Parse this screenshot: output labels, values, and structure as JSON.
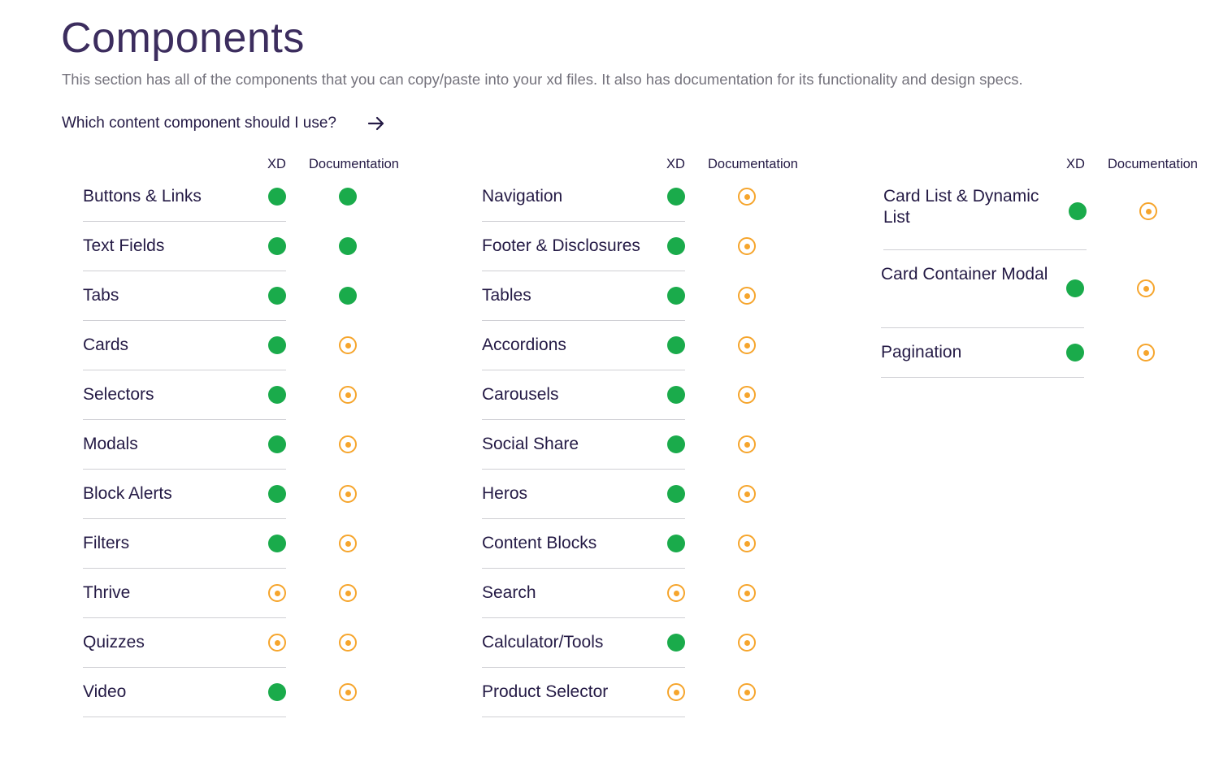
{
  "header": {
    "title": "Components",
    "subtitle": "This section has all of the components that you can copy/paste into your xd files. It also has documentation for its functionality and design specs.",
    "question": "Which content component should I use?",
    "question_icon": "arrow-right-icon"
  },
  "column_headers": {
    "xd": "XD",
    "documentation": "Documentation"
  },
  "status_legend": {
    "available": {
      "icon": "filled-circle-icon",
      "color": "#1aab4b"
    },
    "in_progress": {
      "icon": "target-circle-icon",
      "color": "#f6a52c"
    }
  },
  "columns": [
    {
      "rows": [
        {
          "label": "Buttons & Links",
          "xd": "available",
          "documentation": "available"
        },
        {
          "label": "Text Fields",
          "xd": "available",
          "documentation": "available"
        },
        {
          "label": "Tabs",
          "xd": "available",
          "documentation": "available"
        },
        {
          "label": "Cards",
          "xd": "available",
          "documentation": "in_progress"
        },
        {
          "label": "Selectors",
          "xd": "available",
          "documentation": "in_progress"
        },
        {
          "label": "Modals",
          "xd": "available",
          "documentation": "in_progress"
        },
        {
          "label": "Block Alerts",
          "xd": "available",
          "documentation": "in_progress"
        },
        {
          "label": "Filters",
          "xd": "available",
          "documentation": "in_progress"
        },
        {
          "label": "Thrive",
          "xd": "in_progress",
          "documentation": "in_progress"
        },
        {
          "label": "Quizzes",
          "xd": "in_progress",
          "documentation": "in_progress"
        },
        {
          "label": "Video",
          "xd": "available",
          "documentation": "in_progress"
        }
      ]
    },
    {
      "rows": [
        {
          "label": "Navigation",
          "xd": "available",
          "documentation": "in_progress"
        },
        {
          "label": "Footer & Disclosures",
          "xd": "available",
          "documentation": "in_progress"
        },
        {
          "label": "Tables",
          "xd": "available",
          "documentation": "in_progress"
        },
        {
          "label": "Accordions",
          "xd": "available",
          "documentation": "in_progress"
        },
        {
          "label": "Carousels",
          "xd": "available",
          "documentation": "in_progress"
        },
        {
          "label": "Social Share",
          "xd": "available",
          "documentation": "in_progress"
        },
        {
          "label": "Heros",
          "xd": "available",
          "documentation": "in_progress"
        },
        {
          "label": "Content Blocks",
          "xd": "available",
          "documentation": "in_progress"
        },
        {
          "label": "Search",
          "xd": "in_progress",
          "documentation": "in_progress"
        },
        {
          "label": "Calculator/Tools",
          "xd": "available",
          "documentation": "in_progress"
        },
        {
          "label": "Product Selector",
          "xd": "in_progress",
          "documentation": "in_progress"
        }
      ]
    },
    {
      "rows": [
        {
          "label": "Card List & Dynamic List",
          "xd": "available",
          "documentation": "in_progress"
        },
        {
          "label": "Card Container Modal",
          "xd": "available",
          "documentation": "in_progress"
        },
        {
          "label": "Pagination",
          "xd": "available",
          "documentation": "in_progress"
        }
      ]
    }
  ]
}
